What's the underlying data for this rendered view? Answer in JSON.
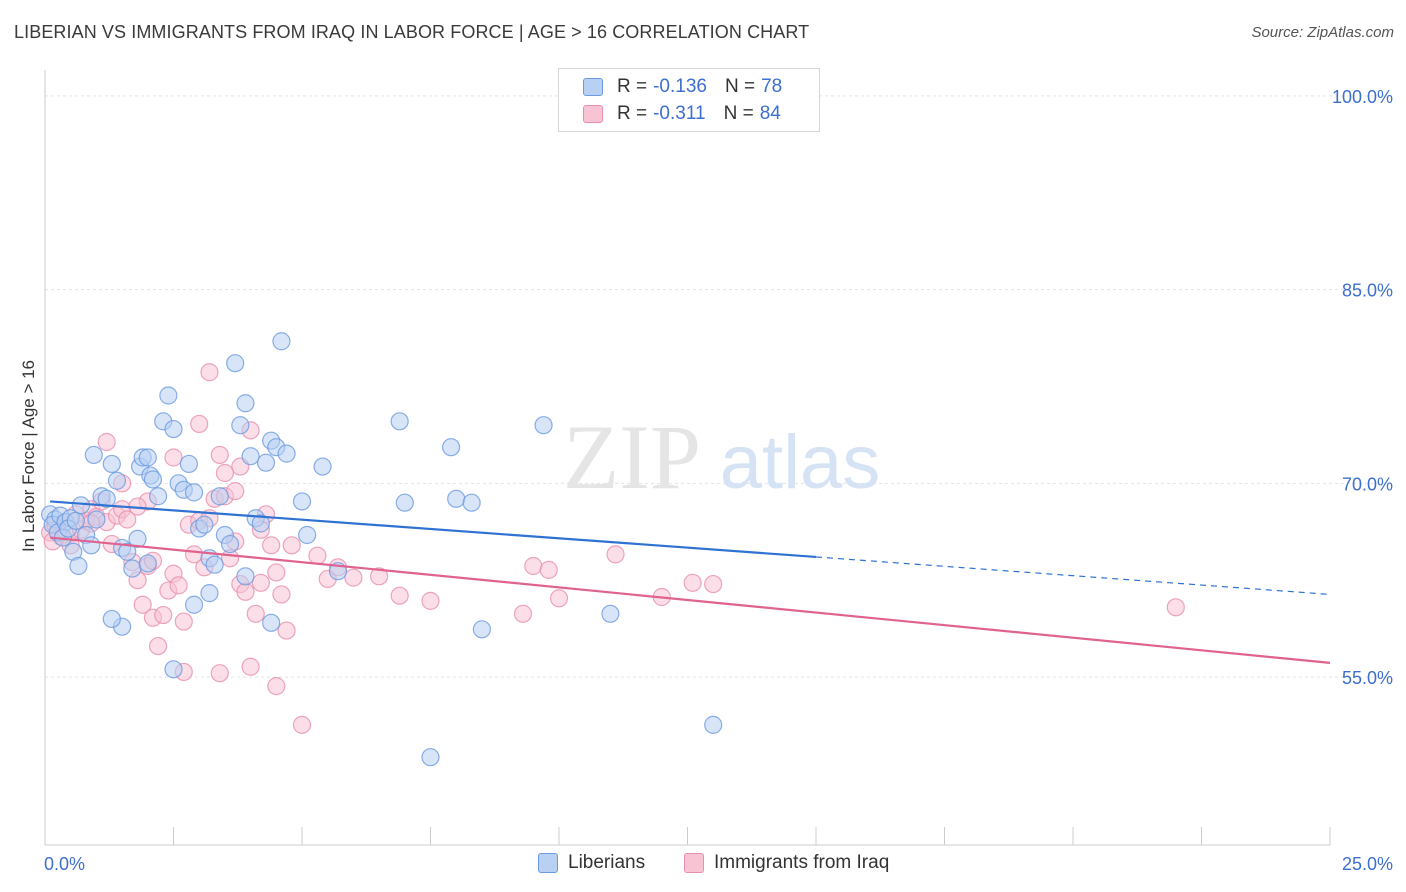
{
  "header": {
    "title": "LIBERIAN VS IMMIGRANTS FROM IRAQ IN LABOR FORCE | AGE > 16 CORRELATION CHART",
    "source": "Source: ZipAtlas.com"
  },
  "legend": {
    "rows": [
      {
        "r_label": "R =",
        "r_value": "-0.136",
        "n_label": "N =",
        "n_value": "78"
      },
      {
        "r_label": "R =",
        "r_value": "-0.311",
        "n_label": "N =",
        "n_value": "84"
      }
    ]
  },
  "bottom_legend": {
    "items": [
      {
        "label": "Liberians"
      },
      {
        "label": "Immigrants from Iraq"
      }
    ]
  },
  "watermark": {
    "part1": "ZIP",
    "part2": "atlas"
  },
  "colors": {
    "liberian_fill": "#b8d0f2",
    "liberian_stroke": "#6c9ae0",
    "liberian_line": "#2f72d2",
    "iraq_fill": "#f8c3d3",
    "iraq_stroke": "#e88fae",
    "iraq_line": "#e0628f",
    "tick_label": "#3d6fcf"
  },
  "chart_data": {
    "type": "scatter",
    "title": "LIBERIAN VS IMMIGRANTS FROM IRAQ IN LABOR FORCE | AGE > 16 CORRELATION CHART",
    "xlabel": "",
    "ylabel": "In Labor Force | Age > 16",
    "xlim": [
      0,
      25
    ],
    "ylim": [
      42,
      102
    ],
    "x_tick_labels": [
      {
        "value": 0,
        "label": "0.0%"
      },
      {
        "value": 25,
        "label": "25.0%"
      }
    ],
    "y_tick_labels": [
      {
        "value": 100,
        "label": "100.0%"
      },
      {
        "value": 85,
        "label": "85.0%"
      },
      {
        "value": 70,
        "label": "70.0%"
      },
      {
        "value": 55,
        "label": "55.0%"
      }
    ],
    "grid": true,
    "legend_position": "top-center",
    "series": [
      {
        "name": "Liberians",
        "r": -0.136,
        "n": 78,
        "trend": {
          "x0": 0.1,
          "y0": 68.6,
          "x1": 15.0,
          "y1": 64.3,
          "dashed_to_x": 25.0,
          "dashed_to_y": 61.4
        },
        "points": [
          [
            0.1,
            67.6
          ],
          [
            0.2,
            67.2
          ],
          [
            0.15,
            66.8
          ],
          [
            0.3,
            67.5
          ],
          [
            0.25,
            66.2
          ],
          [
            0.4,
            67.0
          ],
          [
            0.35,
            65.8
          ],
          [
            0.5,
            67.3
          ],
          [
            0.45,
            66.5
          ],
          [
            0.6,
            67.1
          ],
          [
            0.7,
            68.3
          ],
          [
            0.8,
            66.0
          ],
          [
            0.9,
            65.2
          ],
          [
            0.55,
            64.7
          ],
          [
            0.65,
            63.6
          ],
          [
            1.0,
            67.2
          ],
          [
            1.1,
            69.0
          ],
          [
            1.2,
            68.8
          ],
          [
            0.95,
            72.2
          ],
          [
            1.3,
            71.5
          ],
          [
            1.4,
            70.2
          ],
          [
            1.5,
            65.0
          ],
          [
            1.6,
            64.7
          ],
          [
            1.7,
            63.4
          ],
          [
            1.8,
            65.7
          ],
          [
            1.85,
            71.3
          ],
          [
            1.9,
            72.0
          ],
          [
            2.0,
            72.0
          ],
          [
            2.05,
            70.6
          ],
          [
            2.1,
            70.3
          ],
          [
            2.2,
            69.0
          ],
          [
            2.3,
            74.8
          ],
          [
            2.4,
            76.8
          ],
          [
            2.5,
            74.2
          ],
          [
            2.6,
            70.0
          ],
          [
            2.7,
            69.5
          ],
          [
            2.8,
            71.5
          ],
          [
            2.9,
            69.3
          ],
          [
            3.0,
            66.5
          ],
          [
            3.1,
            66.8
          ],
          [
            3.2,
            64.2
          ],
          [
            3.3,
            63.7
          ],
          [
            3.4,
            69.0
          ],
          [
            3.5,
            66.0
          ],
          [
            3.6,
            65.3
          ],
          [
            3.7,
            79.3
          ],
          [
            3.8,
            74.5
          ],
          [
            3.9,
            76.2
          ],
          [
            4.0,
            72.1
          ],
          [
            4.1,
            67.3
          ],
          [
            4.2,
            66.9
          ],
          [
            4.3,
            71.6
          ],
          [
            4.4,
            73.3
          ],
          [
            4.5,
            72.8
          ],
          [
            4.6,
            81.0
          ],
          [
            4.7,
            72.3
          ],
          [
            5.0,
            68.6
          ],
          [
            5.1,
            66.0
          ],
          [
            5.4,
            71.3
          ],
          [
            6.9,
            74.8
          ],
          [
            7.0,
            68.5
          ],
          [
            7.9,
            72.8
          ],
          [
            8.0,
            68.8
          ],
          [
            8.3,
            68.5
          ],
          [
            9.7,
            74.5
          ],
          [
            11.0,
            59.9
          ],
          [
            13.0,
            51.3
          ],
          [
            7.5,
            48.8
          ],
          [
            2.5,
            55.6
          ],
          [
            1.5,
            58.9
          ],
          [
            1.3,
            59.5
          ],
          [
            2.9,
            60.6
          ],
          [
            3.2,
            61.5
          ],
          [
            4.4,
            59.2
          ],
          [
            8.5,
            58.7
          ],
          [
            5.7,
            63.2
          ],
          [
            3.9,
            62.8
          ],
          [
            2.0,
            63.8
          ]
        ]
      },
      {
        "name": "Immigrants from Iraq",
        "r": -0.311,
        "n": 84,
        "trend": {
          "x0": 0.1,
          "y0": 65.8,
          "x1": 25.0,
          "y1": 56.1
        },
        "points": [
          [
            0.1,
            66.2
          ],
          [
            0.2,
            66.8
          ],
          [
            0.3,
            65.9
          ],
          [
            0.15,
            65.5
          ],
          [
            0.4,
            67.0
          ],
          [
            0.5,
            66.1
          ],
          [
            0.6,
            67.6
          ],
          [
            0.7,
            66.4
          ],
          [
            0.8,
            67.1
          ],
          [
            0.9,
            68.0
          ],
          [
            1.0,
            67.4
          ],
          [
            1.1,
            68.6
          ],
          [
            1.2,
            67.0
          ],
          [
            1.3,
            65.3
          ],
          [
            1.4,
            67.5
          ],
          [
            1.5,
            68.0
          ],
          [
            1.6,
            67.2
          ],
          [
            1.7,
            63.9
          ],
          [
            1.8,
            62.5
          ],
          [
            1.9,
            60.6
          ],
          [
            2.0,
            63.6
          ],
          [
            2.1,
            59.6
          ],
          [
            2.2,
            57.4
          ],
          [
            2.3,
            59.8
          ],
          [
            2.4,
            61.7
          ],
          [
            2.5,
            63.0
          ],
          [
            2.6,
            62.1
          ],
          [
            2.7,
            59.3
          ],
          [
            2.8,
            66.8
          ],
          [
            2.9,
            64.5
          ],
          [
            3.0,
            67.1
          ],
          [
            3.1,
            63.5
          ],
          [
            3.2,
            67.3
          ],
          [
            3.3,
            68.8
          ],
          [
            3.4,
            72.2
          ],
          [
            3.5,
            69.0
          ],
          [
            3.6,
            64.2
          ],
          [
            3.7,
            65.5
          ],
          [
            3.8,
            62.2
          ],
          [
            3.9,
            61.6
          ],
          [
            4.0,
            55.8
          ],
          [
            4.1,
            59.9
          ],
          [
            4.2,
            62.3
          ],
          [
            4.3,
            67.6
          ],
          [
            4.4,
            65.2
          ],
          [
            4.5,
            63.1
          ],
          [
            4.6,
            61.4
          ],
          [
            4.7,
            58.6
          ],
          [
            4.8,
            65.2
          ],
          [
            5.0,
            51.3
          ],
          [
            5.3,
            64.4
          ],
          [
            5.5,
            62.6
          ],
          [
            5.7,
            63.5
          ],
          [
            6.0,
            62.7
          ],
          [
            6.5,
            62.8
          ],
          [
            6.9,
            61.3
          ],
          [
            7.5,
            60.9
          ],
          [
            9.3,
            59.9
          ],
          [
            9.5,
            63.6
          ],
          [
            9.8,
            63.3
          ],
          [
            10.0,
            61.1
          ],
          [
            11.1,
            64.5
          ],
          [
            12.0,
            61.2
          ],
          [
            12.6,
            62.3
          ],
          [
            13.0,
            62.2
          ],
          [
            22.0,
            60.4
          ],
          [
            3.2,
            78.6
          ],
          [
            3.0,
            74.6
          ],
          [
            2.5,
            72.0
          ],
          [
            1.2,
            73.2
          ],
          [
            3.8,
            71.3
          ],
          [
            1.5,
            70.0
          ],
          [
            4.0,
            74.1
          ],
          [
            2.7,
            55.4
          ],
          [
            3.4,
            55.3
          ],
          [
            4.5,
            54.3
          ],
          [
            2.0,
            68.6
          ],
          [
            1.8,
            68.2
          ],
          [
            3.7,
            69.4
          ],
          [
            2.1,
            64.0
          ],
          [
            3.5,
            70.8
          ],
          [
            4.2,
            66.4
          ],
          [
            0.9,
            66.9
          ],
          [
            0.5,
            65.2
          ]
        ]
      }
    ]
  }
}
